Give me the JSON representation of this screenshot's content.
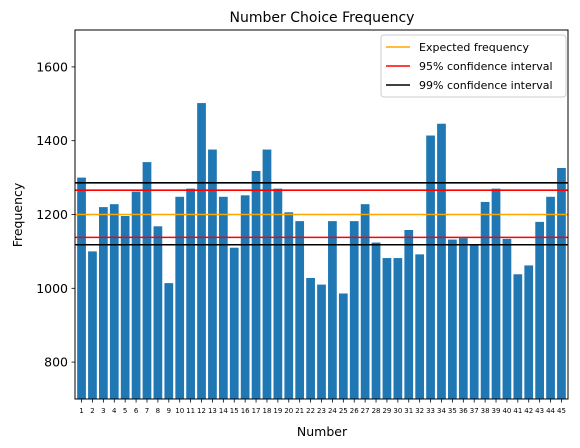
{
  "chart_data": {
    "type": "bar",
    "title": "Number Choice Frequency",
    "xlabel": "Number",
    "ylabel": "Frequency",
    "ylim": [
      700,
      1700
    ],
    "yticks": [
      800,
      1000,
      1200,
      1400,
      1600
    ],
    "categories": [
      "1",
      "2",
      "3",
      "4",
      "5",
      "6",
      "7",
      "8",
      "9",
      "10",
      "11",
      "12",
      "13",
      "14",
      "15",
      "16",
      "17",
      "18",
      "19",
      "20",
      "21",
      "22",
      "23",
      "24",
      "25",
      "26",
      "27",
      "28",
      "29",
      "30",
      "31",
      "32",
      "33",
      "34",
      "35",
      "36",
      "37",
      "38",
      "39",
      "40",
      "41",
      "42",
      "43",
      "44",
      "45"
    ],
    "values": [
      1300,
      1100,
      1220,
      1228,
      1196,
      1262,
      1342,
      1168,
      1014,
      1248,
      1270,
      1502,
      1376,
      1248,
      1110,
      1252,
      1318,
      1376,
      1270,
      1206,
      1182,
      1028,
      1010,
      1182,
      986,
      1182,
      1228,
      1124,
      1082,
      1082,
      1158,
      1092,
      1414,
      1446,
      1132,
      1136,
      1120,
      1234,
      1270,
      1134,
      1038,
      1062,
      1180,
      1248,
      1326
    ],
    "bar_color": "#1f77b4",
    "reference_lines": [
      {
        "name": "Expected frequency",
        "color": "#ffa500",
        "values": [
          1200
        ]
      },
      {
        "name": "95% confidence interval",
        "color": "#ff0000",
        "values": [
          1138,
          1266
        ]
      },
      {
        "name": "99% confidence interval",
        "color": "#000000",
        "values": [
          1118,
          1286
        ]
      }
    ],
    "legend_position": "top-right",
    "grid": false
  }
}
